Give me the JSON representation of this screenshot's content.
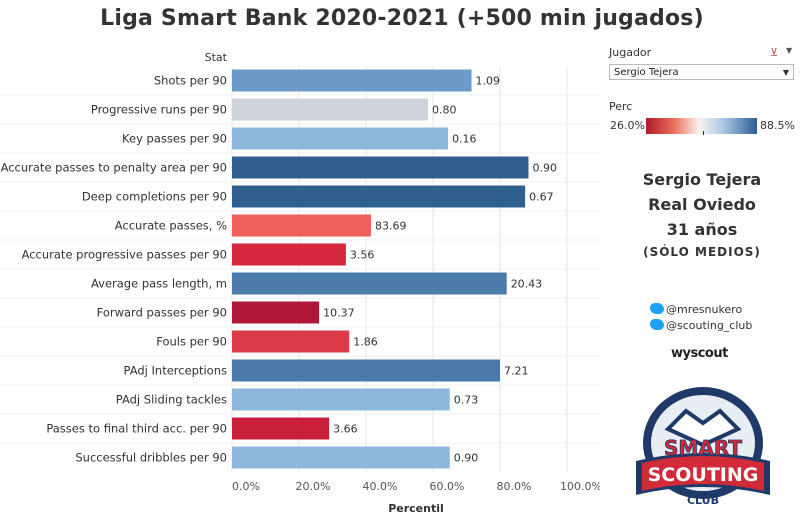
{
  "title": "Liga Smart Bank 2020-2021 (+500 min jugados)",
  "filter": {
    "label": "Jugador",
    "selected": "Sergio Tejera"
  },
  "legend": {
    "label": "Perc",
    "min": "26.0%",
    "max": "88.5%"
  },
  "player_card": {
    "name": "Sergio Tejera",
    "team": "Real Oviedo",
    "age": "31 años",
    "position": "(SÓLO MEDIOS)"
  },
  "social": {
    "handle1": "@mresnukero",
    "handle2": "@scouting_club",
    "brand": "wyscout"
  },
  "logo": {
    "line1": "SMART",
    "line2": "SCOUTING",
    "line3": "CLUB"
  },
  "chart_data": {
    "type": "bar",
    "orientation": "horizontal",
    "column_header": "Stat",
    "xlabel": "Percentil",
    "xlim": [
      0,
      100
    ],
    "xticks": [
      "0.0%",
      "20.0%",
      "40.0%",
      "60.0%",
      "80.0%",
      "100.0%"
    ],
    "categories": [
      "Shots per 90",
      "Progressive runs per 90",
      "Key passes per 90",
      "Accurate passes to penalty area per 90",
      "Deep completions per 90",
      "Accurate passes, %",
      "Accurate progressive passes per 90",
      "Average pass length, m",
      "Forward passes per 90",
      "Fouls per 90",
      "PAdj Interceptions",
      "PAdj Sliding tackles",
      "Passes to final third acc. per 90",
      "Successful dribbles per 90"
    ],
    "percentiles": [
      71.5,
      58.5,
      64.5,
      88.5,
      87.5,
      41.5,
      34,
      82,
      26,
      35,
      80,
      65,
      29,
      65
    ],
    "value_labels": [
      "1.09",
      "0.80",
      "0.16",
      "0.90",
      "0.67",
      "83.69",
      "3.56",
      "20.43",
      "10.37",
      "1.86",
      "7.21",
      "0.73",
      "3.66",
      "0.90"
    ],
    "colors": [
      "#6b9cc8",
      "#ced3dc",
      "#8db8dc",
      "#2f5f8f",
      "#2f5f8f",
      "#f0605a",
      "#d5283d",
      "#4a7bab",
      "#b0173a",
      "#db3b49",
      "#4a7bab",
      "#8db8dc",
      "#c81f3b",
      "#8db8dc"
    ]
  }
}
